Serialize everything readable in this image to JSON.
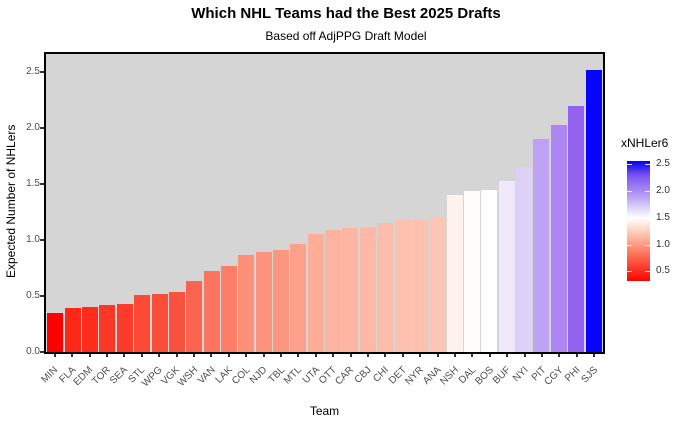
{
  "chart_data": {
    "type": "bar",
    "title": "Which NHL Teams had the Best 2025 Drafts",
    "subtitle": "Based off AdjPPG Draft Model",
    "xlabel": "Team",
    "ylabel": "Expected Number of NHLers",
    "ylim": [
      0.0,
      2.6
    ],
    "yticks": [
      "0.0",
      "0.5",
      "1.0",
      "1.5",
      "2.0",
      "2.5"
    ],
    "ytick_values": [
      0.0,
      0.5,
      1.0,
      1.5,
      2.0,
      2.5
    ],
    "grid": false,
    "panel_background": "#D5D5D5",
    "categories": [
      "MIN",
      "FLA",
      "EDM",
      "TOR",
      "SEA",
      "STL",
      "WPG",
      "VGK",
      "WSH",
      "VAN",
      "LAK",
      "COL",
      "NJD",
      "TBL",
      "MTL",
      "UTA",
      "OTT",
      "CAR",
      "CBJ",
      "CHI",
      "DET",
      "NYR",
      "ANA",
      "NSH",
      "DAL",
      "BOS",
      "BUF",
      "NYI",
      "PIT",
      "CGY",
      "PHI",
      "SJS"
    ],
    "values": [
      0.35,
      0.39,
      0.4,
      0.42,
      0.43,
      0.51,
      0.52,
      0.54,
      0.63,
      0.72,
      0.77,
      0.87,
      0.89,
      0.91,
      0.96,
      1.05,
      1.09,
      1.11,
      1.12,
      1.15,
      1.18,
      1.18,
      1.2,
      1.4,
      1.44,
      1.45,
      1.53,
      1.65,
      1.9,
      2.03,
      2.2,
      2.52
    ],
    "bar_colors": [
      "#FF0000",
      "#FE2819",
      "#FE2C1C",
      "#FD3726",
      "#FD3B2A",
      "#FC4A37",
      "#FC4D3A",
      "#FB5240",
      "#FB6450",
      "#FB7560",
      "#FC7E68",
      "#FD9078",
      "#FD937C",
      "#FD967F",
      "#FEA18B",
      "#FEAD98",
      "#FEB3A0",
      "#FEB6A3",
      "#FEB8A5",
      "#FEBCAA",
      "#FEC0AF",
      "#FEC1B0",
      "#FEC4B4",
      "#FFF2EE",
      "#FFFCFB",
      "#FFFEFE",
      "#EFE9FB",
      "#DDD1F8",
      "#BEA2F6",
      "#AC86F3",
      "#9463EF",
      "#0703FE"
    ],
    "legend": {
      "title": "xNHLer6",
      "position": "right",
      "tick_labels": [
        "2.5",
        "2.0",
        "1.5",
        "1.0",
        "0.5"
      ],
      "tick_values": [
        2.5,
        2.0,
        1.5,
        1.0,
        0.5
      ],
      "domain": [
        0.32,
        2.56
      ],
      "gradient_stops": [
        {
          "pos": 0.0,
          "color": "#0101FE"
        },
        {
          "pos": 0.12,
          "color": "#7B52EF"
        },
        {
          "pos": 0.3,
          "color": "#BBA3F5"
        },
        {
          "pos": 0.475,
          "color": "#FFFFFF"
        },
        {
          "pos": 0.6,
          "color": "#FEC9B7"
        },
        {
          "pos": 0.78,
          "color": "#FC7258"
        },
        {
          "pos": 1.0,
          "color": "#FB0200"
        }
      ]
    }
  }
}
